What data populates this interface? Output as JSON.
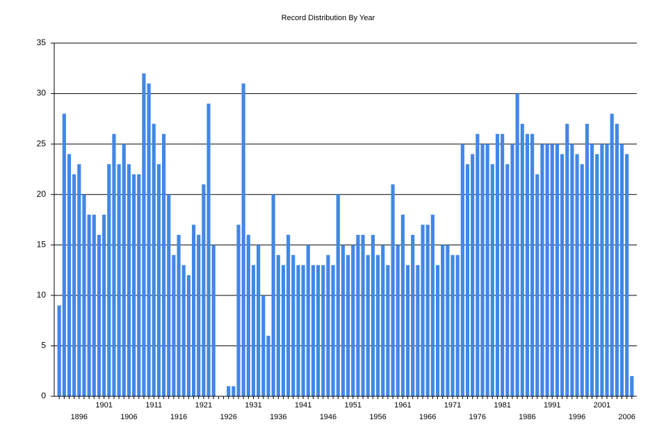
{
  "chart_data": {
    "type": "bar",
    "title": "Record Distribution By Year",
    "categories": [
      null,
      null,
      null,
      null,
      "1896",
      null,
      null,
      null,
      null,
      "1901",
      null,
      null,
      null,
      null,
      "1906",
      null,
      null,
      null,
      null,
      "1911",
      null,
      null,
      null,
      null,
      "1916",
      null,
      null,
      null,
      null,
      "1921",
      null,
      null,
      null,
      null,
      "1926",
      null,
      null,
      null,
      null,
      "1931",
      null,
      null,
      null,
      null,
      "1936",
      null,
      null,
      null,
      null,
      "1941",
      null,
      null,
      null,
      null,
      "1946",
      null,
      null,
      null,
      null,
      "1951",
      null,
      null,
      null,
      null,
      "1956",
      null,
      null,
      null,
      null,
      "1961",
      null,
      null,
      null,
      null,
      "1966",
      null,
      null,
      null,
      null,
      "1971",
      null,
      null,
      null,
      null,
      "1976",
      null,
      null,
      null,
      null,
      "1981",
      null,
      null,
      null,
      null,
      "1986",
      null,
      null,
      null,
      null,
      "1991",
      null,
      null,
      null,
      null,
      "1996",
      null,
      null,
      null,
      null,
      "2001",
      null,
      null,
      null,
      null,
      "2006",
      null
    ],
    "values": [
      9,
      28,
      24,
      22,
      23,
      20,
      18,
      18,
      16,
      18,
      23,
      26,
      23,
      25,
      23,
      22,
      22,
      32,
      31,
      27,
      23,
      26,
      20,
      14,
      16,
      13,
      12,
      17,
      16,
      21,
      29,
      15,
      null,
      null,
      1,
      1,
      17,
      31,
      16,
      13,
      15,
      10,
      6,
      20,
      14,
      13,
      16,
      14,
      13,
      13,
      15,
      13,
      13,
      13,
      14,
      13,
      20,
      15,
      14,
      15,
      16,
      16,
      14,
      16,
      14,
      15,
      13,
      21,
      15,
      18,
      13,
      16,
      13,
      17,
      17,
      18,
      13,
      15,
      15,
      14,
      14,
      25,
      23,
      24,
      26,
      25,
      25,
      23,
      26,
      26,
      23,
      25,
      30,
      27,
      26,
      26,
      22,
      25,
      25,
      25,
      25,
      24,
      27,
      25,
      24,
      23,
      27,
      25,
      24,
      25,
      25,
      28,
      27,
      25,
      24,
      2
    ],
    "color": "#4287e6",
    "ylim": [
      0,
      35
    ],
    "yticks": [
      0,
      5,
      10,
      15,
      20,
      25,
      30,
      35
    ],
    "grid": true
  }
}
